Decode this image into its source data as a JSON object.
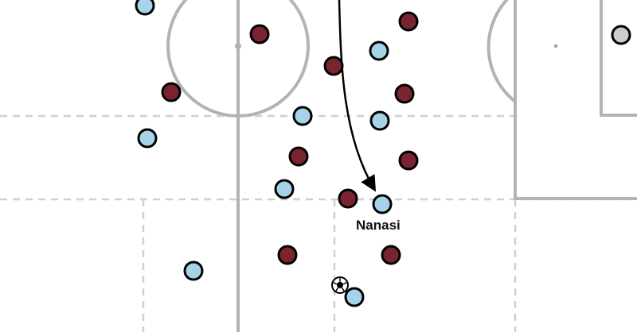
{
  "colors": {
    "background": "#ffffff",
    "pitch_line": "#b3b3b3",
    "zone_dash": "#cfcfcf",
    "team_light_blue": "#a7d3e9",
    "team_maroon": "#7a2430",
    "opponent_goalkeeper": "#cccccc",
    "outline": "#000000",
    "run_arrow": "#000000"
  },
  "player_label": "Nanasi",
  "ball_icon": "football-icon",
  "run_arrow_icon": "curved-arrow-icon"
}
